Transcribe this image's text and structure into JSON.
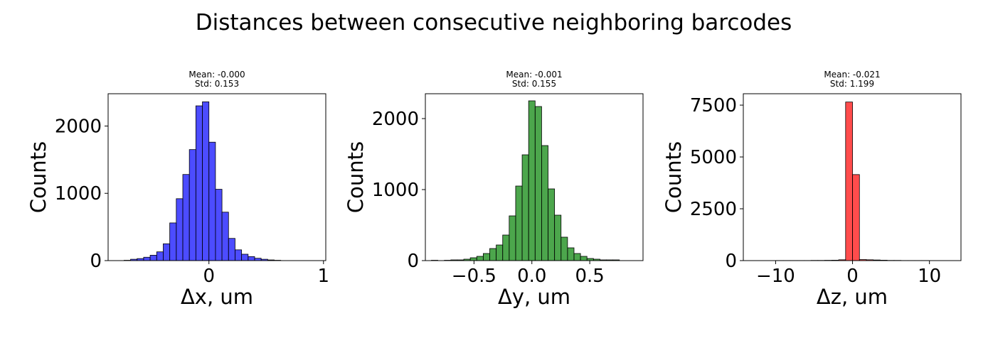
{
  "figure": {
    "title": "Distances between consecutive neighboring barcodes"
  },
  "chart_data": [
    {
      "type": "bar",
      "title_lines": [
        "Mean: -0.000",
        "Std: 0.153"
      ],
      "xlabel": "Δx, um",
      "ylabel": "Counts",
      "xlim": [
        -0.88,
        1.02
      ],
      "ylim": [
        0,
        2480
      ],
      "xticks": [
        0,
        1
      ],
      "xtick_labels": [
        "0",
        "1"
      ],
      "yticks": [
        0,
        1000,
        2000
      ],
      "ytick_labels": [
        "0",
        "1000",
        "2000"
      ],
      "color": "#0000ff",
      "bin_width": 0.057,
      "bins": [
        {
          "x": -0.7125,
          "count": 5
        },
        {
          "x": -0.6555,
          "count": 20
        },
        {
          "x": -0.5985,
          "count": 30
        },
        {
          "x": -0.5415,
          "count": 50
        },
        {
          "x": -0.4845,
          "count": 80
        },
        {
          "x": -0.4275,
          "count": 130
        },
        {
          "x": -0.3705,
          "count": 250
        },
        {
          "x": -0.3135,
          "count": 560
        },
        {
          "x": -0.2565,
          "count": 920
        },
        {
          "x": -0.1995,
          "count": 1280
        },
        {
          "x": -0.1425,
          "count": 1650
        },
        {
          "x": -0.0855,
          "count": 2300
        },
        {
          "x": -0.0285,
          "count": 2360
        },
        {
          "x": 0.0285,
          "count": 1760
        },
        {
          "x": 0.0855,
          "count": 1060
        },
        {
          "x": 0.1425,
          "count": 720
        },
        {
          "x": 0.1995,
          "count": 330
        },
        {
          "x": 0.2565,
          "count": 160
        },
        {
          "x": 0.3135,
          "count": 95
        },
        {
          "x": 0.3705,
          "count": 60
        },
        {
          "x": 0.4275,
          "count": 35
        },
        {
          "x": 0.4845,
          "count": 20
        },
        {
          "x": 0.5415,
          "count": 10
        },
        {
          "x": 0.5985,
          "count": 5
        }
      ]
    },
    {
      "type": "bar",
      "title_lines": [
        "Mean: -0.001",
        "Std: 0.155"
      ],
      "xlabel": "Δy, um",
      "ylabel": "Counts",
      "xlim": [
        -0.92,
        0.96
      ],
      "ylim": [
        0,
        2350
      ],
      "xticks": [
        -0.5,
        0.0,
        0.5
      ],
      "xtick_labels": [
        "−0.5",
        "0.0",
        "0.5"
      ],
      "yticks": [
        0,
        1000,
        2000
      ],
      "ytick_labels": [
        "0",
        "1000",
        "2000"
      ],
      "color": "#008000",
      "bin_width": 0.056,
      "bins": [
        {
          "x": -0.84,
          "count": 5
        },
        {
          "x": -0.728,
          "count": 5
        },
        {
          "x": -0.672,
          "count": 10
        },
        {
          "x": -0.616,
          "count": 10
        },
        {
          "x": -0.56,
          "count": 20
        },
        {
          "x": -0.504,
          "count": 40
        },
        {
          "x": -0.448,
          "count": 60
        },
        {
          "x": -0.392,
          "count": 100
        },
        {
          "x": -0.336,
          "count": 170
        },
        {
          "x": -0.28,
          "count": 220
        },
        {
          "x": -0.224,
          "count": 360
        },
        {
          "x": -0.168,
          "count": 630
        },
        {
          "x": -0.112,
          "count": 1050
        },
        {
          "x": -0.056,
          "count": 1490
        },
        {
          "x": 0.0,
          "count": 2250
        },
        {
          "x": 0.056,
          "count": 2170
        },
        {
          "x": 0.112,
          "count": 1620
        },
        {
          "x": 0.168,
          "count": 1010
        },
        {
          "x": 0.224,
          "count": 640
        },
        {
          "x": 0.28,
          "count": 330
        },
        {
          "x": 0.336,
          "count": 180
        },
        {
          "x": 0.392,
          "count": 100
        },
        {
          "x": 0.448,
          "count": 60
        },
        {
          "x": 0.504,
          "count": 30
        },
        {
          "x": 0.56,
          "count": 20
        },
        {
          "x": 0.616,
          "count": 10
        },
        {
          "x": 0.672,
          "count": 10
        },
        {
          "x": 0.728,
          "count": 10
        }
      ]
    },
    {
      "type": "bar",
      "title_lines": [
        "Mean: -0.021",
        "Std: 1.199"
      ],
      "xlabel": "Δz, um",
      "ylabel": "Counts",
      "xlim": [
        -14.2,
        14.1
      ],
      "ylim": [
        0,
        8050
      ],
      "xticks": [
        -10,
        0,
        10
      ],
      "xtick_labels": [
        "−10",
        "0",
        "10"
      ],
      "yticks": [
        0,
        2500,
        5000,
        7500
      ],
      "ytick_labels": [
        "0",
        "2500",
        "5000",
        "7500"
      ],
      "color": "#ff0000",
      "bin_width": 0.9,
      "bins": [
        {
          "x": -9.45,
          "count": 5
        },
        {
          "x": -8.55,
          "count": 5
        },
        {
          "x": -7.65,
          "count": 5
        },
        {
          "x": -6.75,
          "count": 5
        },
        {
          "x": -5.85,
          "count": 5
        },
        {
          "x": -4.95,
          "count": 10
        },
        {
          "x": -4.05,
          "count": 10
        },
        {
          "x": -3.15,
          "count": 15
        },
        {
          "x": -2.25,
          "count": 20
        },
        {
          "x": -1.35,
          "count": 40
        },
        {
          "x": -0.45,
          "count": 7650
        },
        {
          "x": 0.45,
          "count": 4150
        },
        {
          "x": 1.35,
          "count": 50
        },
        {
          "x": 2.25,
          "count": 40
        },
        {
          "x": 3.15,
          "count": 30
        },
        {
          "x": 4.05,
          "count": 20
        },
        {
          "x": 4.95,
          "count": 10
        },
        {
          "x": 5.85,
          "count": 10
        },
        {
          "x": 6.75,
          "count": 5
        },
        {
          "x": 7.65,
          "count": 5
        },
        {
          "x": 8.55,
          "count": 5
        },
        {
          "x": 9.45,
          "count": 5
        }
      ]
    }
  ]
}
